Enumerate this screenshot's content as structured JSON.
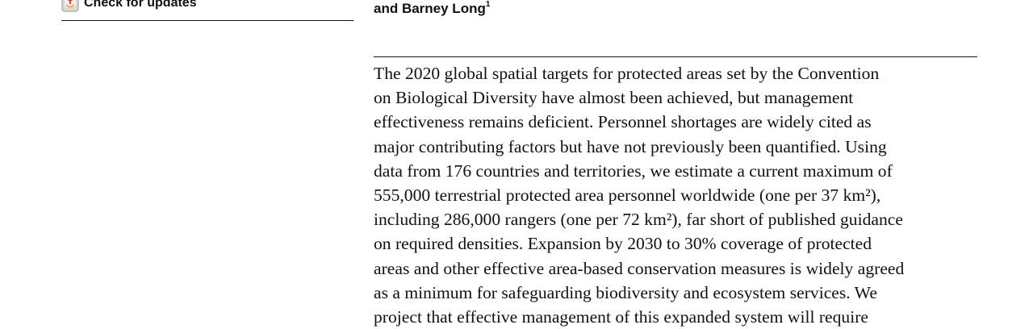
{
  "check_updates": {
    "label": "Check for updates",
    "icon": "update-badge-icon"
  },
  "authors": {
    "text": "and Barney Long",
    "affiliation_marker": "1"
  },
  "abstract_lines": [
    "The 2020 global spatial targets for protected areas set by the Convention",
    "on Biological Diversity have almost been achieved, but management",
    "effectiveness remains deficient. Personnel shortages are widely cited as",
    "major contributing factors but have not previously been quantified. Using",
    "data from 176 countries and territories, we estimate a current maximum of",
    "555,000 terrestrial protected area personnel worldwide (one per 37 km²),",
    "including 286,000 rangers (one per 72 km²), far short of published guidance",
    "on required densities. Expansion by 2030 to 30% coverage of protected",
    "areas and other effective area-based conservation measures is widely agreed",
    "as a minimum for safeguarding biodiversity and ecosystem services. We",
    "project that effective management of this expanded system will require"
  ]
}
